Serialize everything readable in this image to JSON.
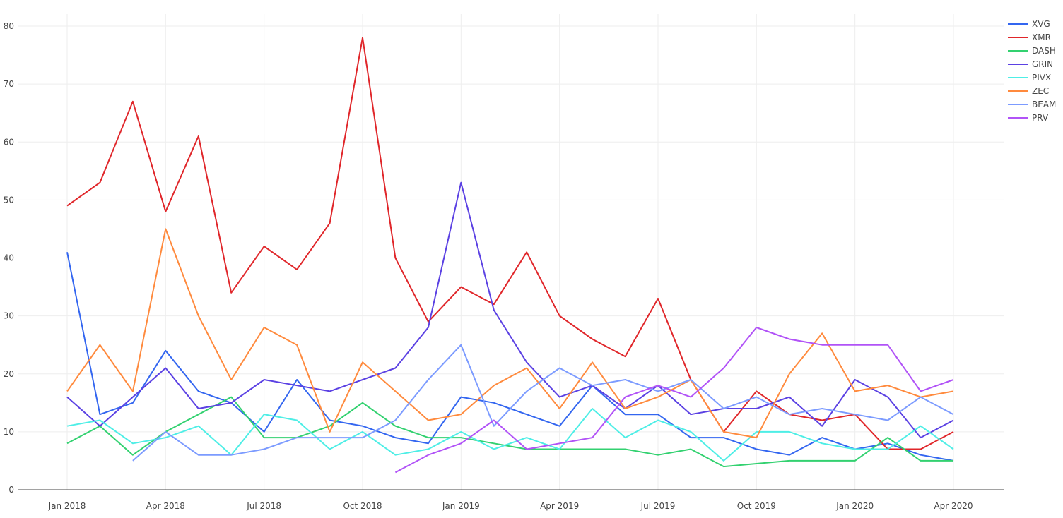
{
  "chart_data": {
    "type": "line",
    "title": "",
    "xlabel": "",
    "ylabel": "",
    "ylim": [
      0,
      82
    ],
    "yticks": [
      0,
      10,
      20,
      30,
      40,
      50,
      60,
      70,
      80
    ],
    "grid": true,
    "legend_position": "top-right",
    "x": [
      "2018-01",
      "2018-02",
      "2018-03",
      "2018-04",
      "2018-05",
      "2018-06",
      "2018-07",
      "2018-08",
      "2018-09",
      "2018-10",
      "2018-11",
      "2018-12",
      "2019-01",
      "2019-02",
      "2019-03",
      "2019-04",
      "2019-05",
      "2019-06",
      "2019-07",
      "2019-08",
      "2019-09",
      "2019-10",
      "2019-11",
      "2019-12",
      "2020-01",
      "2020-02",
      "2020-03",
      "2020-04"
    ],
    "xtick_labels": [
      {
        "index": 0,
        "label": "Jan 2018"
      },
      {
        "index": 3,
        "label": "Apr 2018"
      },
      {
        "index": 6,
        "label": "Jul 2018"
      },
      {
        "index": 9,
        "label": "Oct 2018"
      },
      {
        "index": 12,
        "label": "Jan 2019"
      },
      {
        "index": 15,
        "label": "Apr 2019"
      },
      {
        "index": 18,
        "label": "Jul 2019"
      },
      {
        "index": 21,
        "label": "Oct 2019"
      },
      {
        "index": 24,
        "label": "Jan 2020"
      },
      {
        "index": 27,
        "label": "Apr 2020"
      }
    ],
    "series": [
      {
        "name": "XVG",
        "color": "#3366f0",
        "values": [
          41,
          13,
          15,
          24,
          17,
          15,
          10,
          19,
          12,
          11,
          9,
          8,
          16,
          15,
          13,
          11,
          18,
          13,
          13,
          9,
          9,
          7,
          6,
          9,
          7,
          8,
          6,
          5
        ]
      },
      {
        "name": "XMR",
        "color": "#e0262a",
        "values": [
          49,
          53,
          67,
          48,
          61,
          34,
          42,
          38,
          46,
          78,
          40,
          29,
          35,
          32,
          41,
          30,
          26,
          23,
          33,
          19,
          10,
          17,
          13,
          12,
          13,
          7,
          7,
          10
        ]
      },
      {
        "name": "DASH",
        "color": "#33d170",
        "values": [
          8,
          11,
          6,
          10,
          13,
          16,
          9,
          9,
          11,
          15,
          11,
          9,
          9,
          8,
          7,
          7,
          7,
          7,
          6,
          7,
          4,
          4.5,
          5,
          5,
          5,
          9,
          5,
          5
        ]
      },
      {
        "name": "GRIN",
        "color": "#5b41e3",
        "values": [
          16,
          11,
          16,
          21,
          14,
          15,
          19,
          18,
          17,
          19,
          21,
          28,
          53,
          31,
          22,
          16,
          18,
          14,
          18,
          13,
          14,
          14,
          16,
          11,
          19,
          16,
          9,
          12
        ]
      },
      {
        "name": "PIVX",
        "color": "#4eeee6",
        "values": [
          11,
          12,
          8,
          9,
          11,
          6,
          13,
          12,
          7,
          10,
          6,
          7,
          10,
          7,
          9,
          7,
          14,
          9,
          12,
          10,
          5,
          10,
          10,
          8,
          7,
          7,
          11,
          7
        ]
      },
      {
        "name": "ZEC",
        "color": "#ff8a3d",
        "values": [
          17,
          25,
          17,
          45,
          30,
          19,
          28,
          25,
          10,
          22,
          17,
          12,
          13,
          18,
          21,
          14,
          22,
          14,
          16,
          19,
          10,
          9,
          20,
          27,
          17,
          18,
          16,
          17
        ]
      },
      {
        "name": "BEAM",
        "color": "#7c9bff",
        "values": [
          null,
          null,
          5,
          10,
          6,
          6,
          7,
          9,
          9,
          9,
          12,
          19,
          25,
          11,
          17,
          21,
          18,
          19,
          17,
          19,
          14,
          16,
          13,
          14,
          13,
          12,
          16,
          13
        ]
      },
      {
        "name": "PRV",
        "color": "#b153f7",
        "values": [
          null,
          null,
          null,
          null,
          null,
          null,
          null,
          null,
          null,
          null,
          3,
          6,
          8,
          12,
          7,
          8,
          9,
          16,
          18,
          16,
          21,
          28,
          26,
          25,
          25,
          25,
          17,
          19
        ]
      }
    ]
  }
}
